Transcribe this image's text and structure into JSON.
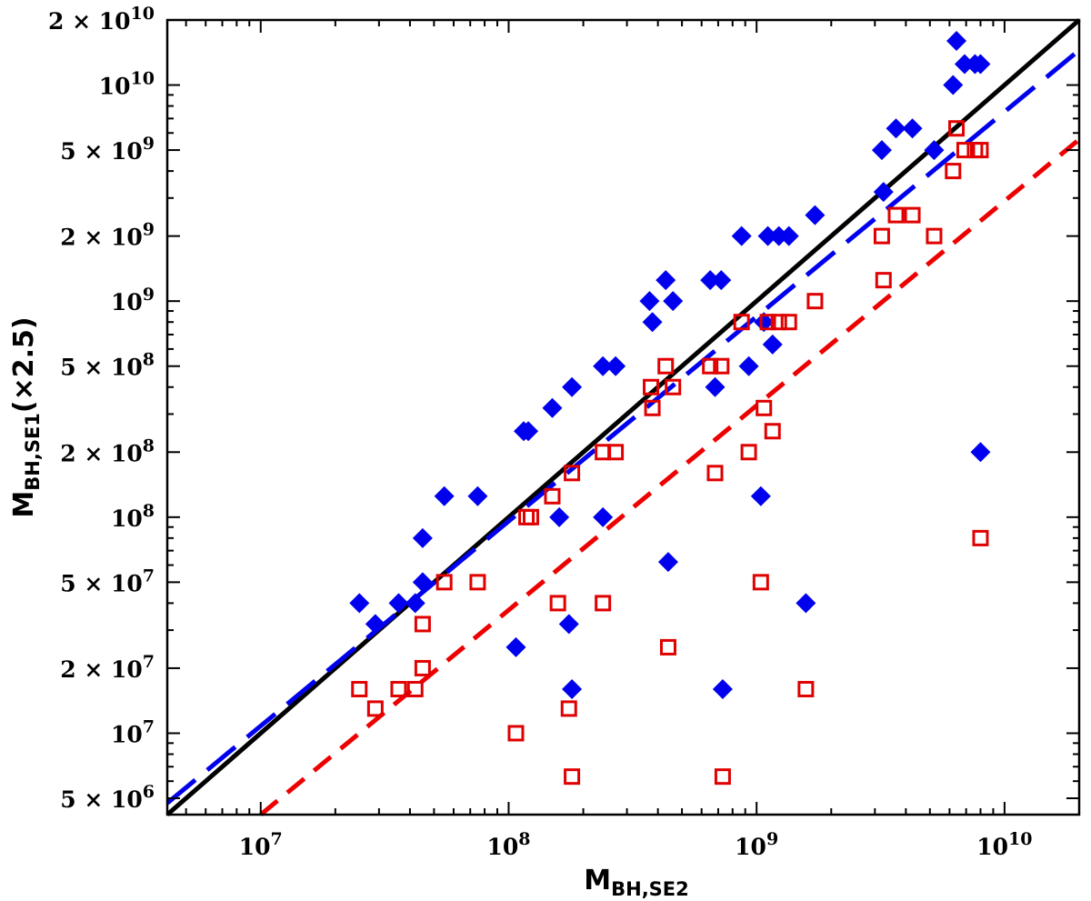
{
  "chart_data": {
    "type": "scatter",
    "xscale": "log",
    "yscale": "log",
    "xlim": [
      4200000.0,
      20000000000.0
    ],
    "ylim": [
      4200000.0,
      20000000000.0
    ],
    "xlabel": {
      "main": "M",
      "sub": "BH,SE2"
    },
    "ylabel": {
      "main": "M",
      "sub": "BH,SE1",
      "suffix": "(×2.5)"
    },
    "x_ticks": [
      {
        "value": 10000000.0,
        "label": "10",
        "exp": "7"
      },
      {
        "value": 100000000.0,
        "label": "10",
        "exp": "8"
      },
      {
        "value": 1000000000.0,
        "label": "10",
        "exp": "9"
      },
      {
        "value": 10000000000.0,
        "label": "10",
        "exp": "10"
      }
    ],
    "y_ticks": [
      {
        "value": 5000000.0,
        "label": "5 × 10",
        "exp": "6"
      },
      {
        "value": 10000000.0,
        "label": "10",
        "exp": "7"
      },
      {
        "value": 20000000.0,
        "label": "2 × 10",
        "exp": "7"
      },
      {
        "value": 50000000.0,
        "label": "5 × 10",
        "exp": "7"
      },
      {
        "value": 100000000.0,
        "label": "10",
        "exp": "8"
      },
      {
        "value": 200000000.0,
        "label": "2 × 10",
        "exp": "8"
      },
      {
        "value": 500000000.0,
        "label": "5 × 10",
        "exp": "8"
      },
      {
        "value": 1000000000.0,
        "label": "10",
        "exp": "9"
      },
      {
        "value": 2000000000.0,
        "label": "2 × 10",
        "exp": "9"
      },
      {
        "value": 5000000000.0,
        "label": "5 × 10",
        "exp": "9"
      },
      {
        "value": 10000000000.0,
        "label": "10",
        "exp": "10"
      },
      {
        "value": 20000000000.0,
        "label": "2 × 10",
        "exp": "10"
      }
    ],
    "series": [
      {
        "name": "blue diamonds",
        "marker": "filled-diamond",
        "color": "#0000ee",
        "points": [
          [
            25000000.0,
            40000000.0
          ],
          [
            29000000.0,
            32000000.0
          ],
          [
            36000000.0,
            40000000.0
          ],
          [
            42000000.0,
            40000000.0
          ],
          [
            45000000.0,
            50000000.0
          ],
          [
            45000000.0,
            80000000.0
          ],
          [
            55000000.0,
            125000000.0
          ],
          [
            75000000.0,
            125000000.0
          ],
          [
            107000000.0,
            25000000.0
          ],
          [
            115000000.0,
            250000000.0
          ],
          [
            120000000.0,
            250000000.0
          ],
          [
            150000000.0,
            320000000.0
          ],
          [
            160000000.0,
            100000000.0
          ],
          [
            175000000.0,
            32000000.0
          ],
          [
            180000000.0,
            16000000.0
          ],
          [
            180000000.0,
            400000000.0
          ],
          [
            240000000.0,
            100000000.0
          ],
          [
            240000000.0,
            500000000.0
          ],
          [
            270000000.0,
            500000000.0
          ],
          [
            370000000.0,
            1000000000.0
          ],
          [
            380000000.0,
            800000000.0
          ],
          [
            430000000.0,
            1250000000.0
          ],
          [
            440000000.0,
            62000000.0
          ],
          [
            460000000.0,
            1000000000.0
          ],
          [
            650000000.0,
            1250000000.0
          ],
          [
            680000000.0,
            400000000.0
          ],
          [
            720000000.0,
            1250000000.0
          ],
          [
            730000000.0,
            16000000.0
          ],
          [
            870000000.0,
            2000000000.0
          ],
          [
            930000000.0,
            500000000.0
          ],
          [
            1040000000.0,
            125000000.0
          ],
          [
            1070000000.0,
            800000000.0
          ],
          [
            1110000000.0,
            2000000000.0
          ],
          [
            1160000000.0,
            630000000.0
          ],
          [
            1230000000.0,
            2000000000.0
          ],
          [
            1350000000.0,
            2000000000.0
          ],
          [
            1580000000.0,
            40000000.0
          ],
          [
            1720000000.0,
            2500000000.0
          ],
          [
            3200000000.0,
            5000000000.0
          ],
          [
            3250000000.0,
            3200000000.0
          ],
          [
            3650000000.0,
            6300000000.0
          ],
          [
            4250000000.0,
            6300000000.0
          ],
          [
            5200000000.0,
            5000000000.0
          ],
          [
            6200000000.0,
            10000000000.0
          ],
          [
            6400000000.0,
            16000000000.0
          ],
          [
            6900000000.0,
            12500000000.0
          ],
          [
            7600000000.0,
            12500000000.0
          ],
          [
            8000000000.0,
            12500000000.0
          ],
          [
            8000000000.0,
            200000000.0
          ]
        ]
      },
      {
        "name": "red open squares",
        "marker": "open-square",
        "color": "#e00000",
        "points": [
          [
            25000000.0,
            16000000.0
          ],
          [
            29000000.0,
            13000000.0
          ],
          [
            36000000.0,
            16000000.0
          ],
          [
            42000000.0,
            16000000.0
          ],
          [
            45000000.0,
            20000000.0
          ],
          [
            45000000.0,
            32000000.0
          ],
          [
            55000000.0,
            50000000.0
          ],
          [
            75000000.0,
            50000000.0
          ],
          [
            107000000.0,
            10000000.0
          ],
          [
            118000000.0,
            100000000.0
          ],
          [
            123000000.0,
            100000000.0
          ],
          [
            150000000.0,
            125000000.0
          ],
          [
            158000000.0,
            40000000.0
          ],
          [
            175000000.0,
            13000000.0
          ],
          [
            180000000.0,
            6300000.0
          ],
          [
            180000000.0,
            160000000.0
          ],
          [
            240000000.0,
            40000000.0
          ],
          [
            240000000.0,
            200000000.0
          ],
          [
            270000000.0,
            200000000.0
          ],
          [
            375000000.0,
            400000000.0
          ],
          [
            380000000.0,
            320000000.0
          ],
          [
            430000000.0,
            500000000.0
          ],
          [
            440000000.0,
            25000000.0
          ],
          [
            460000000.0,
            400000000.0
          ],
          [
            650000000.0,
            500000000.0
          ],
          [
            680000000.0,
            160000000.0
          ],
          [
            720000000.0,
            500000000.0
          ],
          [
            730000000.0,
            6300000.0
          ],
          [
            870000000.0,
            800000000.0
          ],
          [
            930000000.0,
            200000000.0
          ],
          [
            1040000000.0,
            50000000.0
          ],
          [
            1070000000.0,
            320000000.0
          ],
          [
            1110000000.0,
            800000000.0
          ],
          [
            1160000000.0,
            250000000.0
          ],
          [
            1230000000.0,
            800000000.0
          ],
          [
            1350000000.0,
            800000000.0
          ],
          [
            1580000000.0,
            16000000.0
          ],
          [
            1720000000.0,
            1000000000.0
          ],
          [
            3200000000.0,
            2000000000.0
          ],
          [
            3250000000.0,
            1250000000.0
          ],
          [
            3650000000.0,
            2500000000.0
          ],
          [
            4250000000.0,
            2500000000.0
          ],
          [
            5200000000.0,
            2000000000.0
          ],
          [
            6200000000.0,
            4000000000.0
          ],
          [
            6400000000.0,
            6300000000.0
          ],
          [
            6900000000.0,
            5000000000.0
          ],
          [
            7600000000.0,
            5000000000.0
          ],
          [
            8000000000.0,
            5000000000.0
          ],
          [
            8000000000.0,
            80000000.0
          ]
        ]
      }
    ],
    "lines": [
      {
        "name": "one-to-one",
        "style": "solid",
        "color": "#000000",
        "x": [
          4200000.0,
          20000000000.0
        ],
        "y": [
          4200000.0,
          20000000000.0
        ]
      },
      {
        "name": "blue fit",
        "style": "long-dash",
        "color": "#0000ee",
        "x": [
          4200000.0,
          20000000000.0
        ],
        "y": [
          4750000.0,
          14500000000.0
        ]
      },
      {
        "name": "red fit",
        "style": "dash",
        "color": "#ee0000",
        "x": [
          10000000.0,
          20000000000.0
        ],
        "y": [
          4200000.0,
          5600000000.0
        ]
      }
    ]
  }
}
